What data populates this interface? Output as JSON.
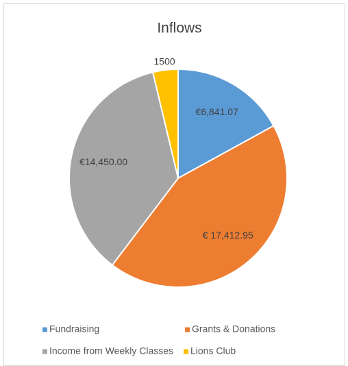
{
  "chart_data": {
    "type": "pie",
    "title": "Inflows",
    "categories": [
      "Fundraising",
      "Grants & Donations",
      "Income from Weekly Classes",
      "Lions Club"
    ],
    "values": [
      6841.07,
      17412.95,
      14450.0,
      1500
    ],
    "value_labels": [
      "€6,841.07",
      "€ 17,412.95",
      "€14,450.00",
      "1500"
    ],
    "colors": [
      "#5b9bd5",
      "#ed7d31",
      "#a5a5a5",
      "#ffc000"
    ],
    "legend": "bottom"
  }
}
